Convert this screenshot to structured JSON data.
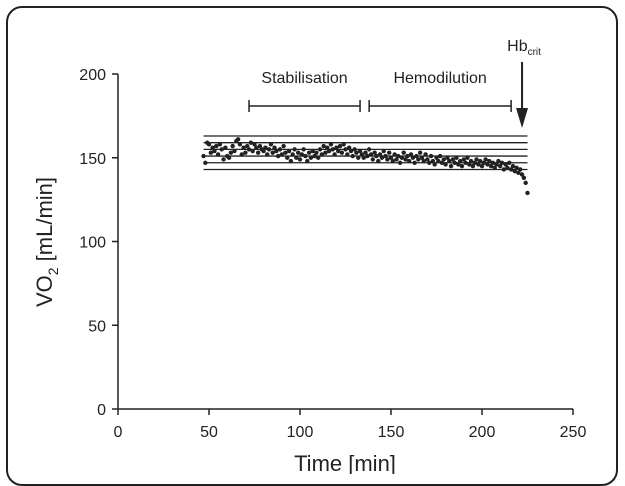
{
  "chart_data": {
    "type": "scatter",
    "title": "",
    "xlabel": "Time [min]",
    "ylabel": {
      "main": "VO",
      "sub": "2",
      "unit": " [mL/min]"
    },
    "xlim": [
      0,
      250
    ],
    "ylim": [
      0,
      200
    ],
    "xticks": [
      0,
      50,
      100,
      150,
      200,
      250
    ],
    "yticks": [
      0,
      50,
      100,
      150,
      200
    ],
    "grid": false,
    "legend": "none",
    "reference_lines": {
      "y": [
        163,
        159,
        155,
        151,
        147,
        143
      ],
      "x_range": [
        47,
        225
      ]
    },
    "annotations": {
      "stabilisation": {
        "label": "Stabilisation",
        "x_range": [
          72,
          133
        ]
      },
      "hemodilution": {
        "label": "Hemodilution",
        "x_range": [
          138,
          216
        ]
      },
      "hb_crit": {
        "label": "Hb",
        "sub": "crit",
        "x": 222
      }
    },
    "points": [
      [
        47,
        151
      ],
      [
        48,
        147
      ],
      [
        49,
        159
      ],
      [
        50,
        158
      ],
      [
        51,
        153
      ],
      [
        52,
        156
      ],
      [
        53,
        154
      ],
      [
        54,
        157
      ],
      [
        55,
        152
      ],
      [
        56,
        158
      ],
      [
        57,
        155
      ],
      [
        58,
        149
      ],
      [
        59,
        156
      ],
      [
        60,
        151
      ],
      [
        61,
        150
      ],
      [
        62,
        153
      ],
      [
        63,
        157
      ],
      [
        64,
        154
      ],
      [
        65,
        160
      ],
      [
        66,
        161
      ],
      [
        67,
        158
      ],
      [
        68,
        152
      ],
      [
        69,
        156
      ],
      [
        70,
        153
      ],
      [
        71,
        157
      ],
      [
        72,
        155
      ],
      [
        73,
        159
      ],
      [
        74,
        154
      ],
      [
        75,
        158
      ],
      [
        76,
        156
      ],
      [
        77,
        153
      ],
      [
        78,
        157
      ],
      [
        79,
        155
      ],
      [
        80,
        154
      ],
      [
        81,
        156
      ],
      [
        82,
        152
      ],
      [
        83,
        155
      ],
      [
        84,
        158
      ],
      [
        85,
        153
      ],
      [
        86,
        156
      ],
      [
        87,
        154
      ],
      [
        88,
        151
      ],
      [
        89,
        155
      ],
      [
        90,
        152
      ],
      [
        91,
        157
      ],
      [
        92,
        153
      ],
      [
        93,
        150
      ],
      [
        94,
        154
      ],
      [
        95,
        148
      ],
      [
        96,
        152
      ],
      [
        97,
        155
      ],
      [
        98,
        150
      ],
      [
        99,
        153
      ],
      [
        100,
        149
      ],
      [
        101,
        152
      ],
      [
        102,
        155
      ],
      [
        103,
        151
      ],
      [
        104,
        148
      ],
      [
        105,
        153
      ],
      [
        106,
        150
      ],
      [
        107,
        154
      ],
      [
        108,
        151
      ],
      [
        109,
        153
      ],
      [
        110,
        150
      ],
      [
        111,
        155
      ],
      [
        112,
        152
      ],
      [
        113,
        157
      ],
      [
        114,
        153
      ],
      [
        115,
        156
      ],
      [
        116,
        154
      ],
      [
        117,
        158
      ],
      [
        118,
        155
      ],
      [
        119,
        152
      ],
      [
        120,
        156
      ],
      [
        121,
        154
      ],
      [
        122,
        157
      ],
      [
        123,
        153
      ],
      [
        124,
        158
      ],
      [
        125,
        155
      ],
      [
        126,
        152
      ],
      [
        127,
        156
      ],
      [
        128,
        154
      ],
      [
        129,
        151
      ],
      [
        130,
        155
      ],
      [
        131,
        153
      ],
      [
        132,
        150
      ],
      [
        133,
        154
      ],
      [
        134,
        152
      ],
      [
        135,
        150
      ],
      [
        136,
        153
      ],
      [
        137,
        151
      ],
      [
        138,
        155
      ],
      [
        139,
        152
      ],
      [
        140,
        149
      ],
      [
        141,
        153
      ],
      [
        142,
        151
      ],
      [
        143,
        148
      ],
      [
        144,
        152
      ],
      [
        145,
        150
      ],
      [
        146,
        154
      ],
      [
        147,
        151
      ],
      [
        148,
        149
      ],
      [
        149,
        153
      ],
      [
        150,
        150
      ],
      [
        151,
        148
      ],
      [
        152,
        152
      ],
      [
        153,
        149
      ],
      [
        154,
        151
      ],
      [
        155,
        147
      ],
      [
        156,
        150
      ],
      [
        157,
        153
      ],
      [
        158,
        149
      ],
      [
        159,
        151
      ],
      [
        160,
        148
      ],
      [
        161,
        152
      ],
      [
        162,
        150
      ],
      [
        163,
        147
      ],
      [
        164,
        151
      ],
      [
        165,
        149
      ],
      [
        166,
        153
      ],
      [
        167,
        150
      ],
      [
        168,
        148
      ],
      [
        169,
        152
      ],
      [
        170,
        149
      ],
      [
        171,
        147
      ],
      [
        172,
        151
      ],
      [
        173,
        148
      ],
      [
        174,
        146
      ],
      [
        175,
        150
      ],
      [
        176,
        148
      ],
      [
        177,
        151
      ],
      [
        178,
        147
      ],
      [
        179,
        149
      ],
      [
        180,
        146
      ],
      [
        181,
        150
      ],
      [
        182,
        148
      ],
      [
        183,
        145
      ],
      [
        184,
        149
      ],
      [
        185,
        147
      ],
      [
        186,
        150
      ],
      [
        187,
        146
      ],
      [
        188,
        148
      ],
      [
        189,
        145
      ],
      [
        190,
        149
      ],
      [
        191,
        147
      ],
      [
        192,
        150
      ],
      [
        193,
        146
      ],
      [
        194,
        148
      ],
      [
        195,
        145
      ],
      [
        196,
        147
      ],
      [
        197,
        149
      ],
      [
        198,
        146
      ],
      [
        199,
        148
      ],
      [
        200,
        145
      ],
      [
        201,
        147
      ],
      [
        202,
        149
      ],
      [
        203,
        146
      ],
      [
        204,
        148
      ],
      [
        205,
        145
      ],
      [
        206,
        147
      ],
      [
        207,
        144
      ],
      [
        208,
        146
      ],
      [
        209,
        148
      ],
      [
        210,
        145
      ],
      [
        211,
        147
      ],
      [
        212,
        143
      ],
      [
        213,
        146
      ],
      [
        214,
        144
      ],
      [
        215,
        147
      ],
      [
        216,
        143
      ],
      [
        217,
        145
      ],
      [
        218,
        142
      ],
      [
        219,
        144
      ],
      [
        220,
        141
      ],
      [
        221,
        143
      ],
      [
        222,
        140
      ],
      [
        223,
        138
      ],
      [
        224,
        135
      ],
      [
        225,
        129
      ]
    ]
  }
}
